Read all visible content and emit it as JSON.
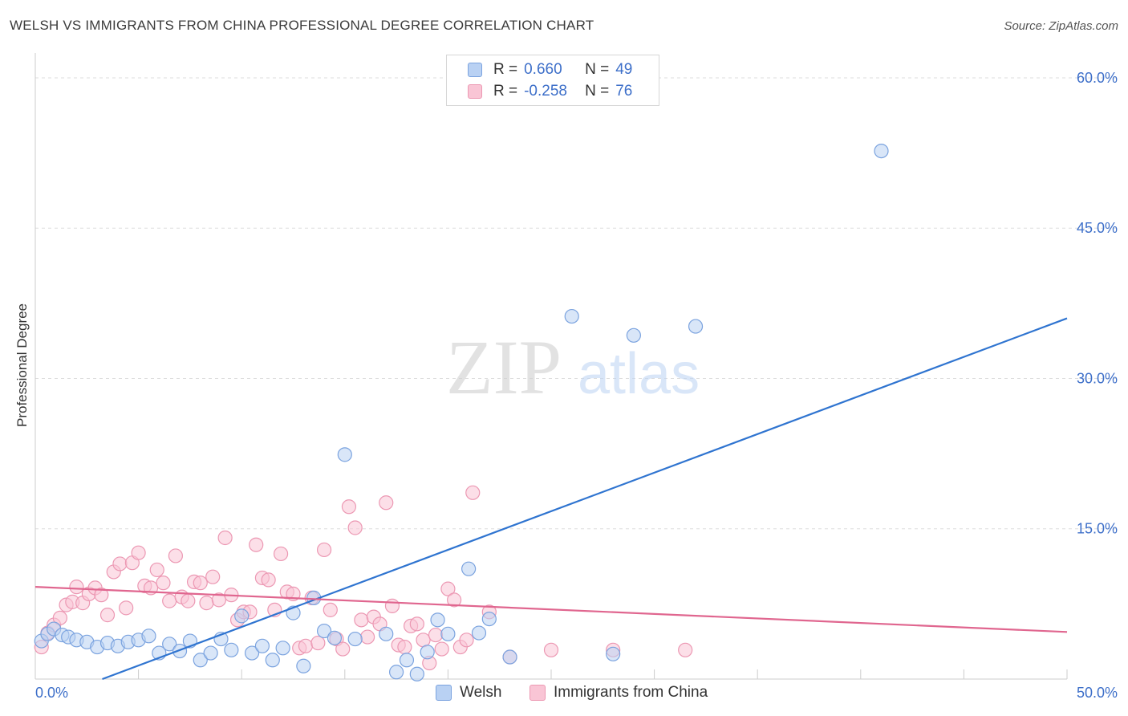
{
  "title": "WELSH VS IMMIGRANTS FROM CHINA PROFESSIONAL DEGREE CORRELATION CHART",
  "source": "Source: ZipAtlas.com",
  "watermark": {
    "zip": "ZIP",
    "atlas": "atlas"
  },
  "legend": {
    "rows": [
      {
        "r_label": "R =",
        "r_value": "0.660",
        "n_label": "N =",
        "n_value": "49"
      },
      {
        "r_label": "R =",
        "r_value": "-0.258",
        "n_label": "N =",
        "n_value": "76"
      }
    ]
  },
  "colors": {
    "welsh_fill": "#b9d1f3",
    "welsh_stroke": "#7ba3df",
    "welsh_line": "#2f74d0",
    "china_fill": "#f9c5d5",
    "china_stroke": "#ec98b3",
    "china_line": "#e0668f",
    "grid": "#dddddd",
    "axis_text": "#3d6fc9"
  },
  "chart_data": {
    "type": "scatter",
    "title": "WELSH VS IMMIGRANTS FROM CHINA PROFESSIONAL DEGREE CORRELATION CHART",
    "xlabel": "",
    "ylabel": "Professional Degree",
    "xlim": [
      0,
      50
    ],
    "ylim": [
      0,
      62
    ],
    "x_tick_labels": [
      "0.0%",
      "50.0%"
    ],
    "y_ticks": [
      15,
      30,
      45,
      60
    ],
    "y_tick_labels": [
      "15.0%",
      "30.0%",
      "45.0%",
      "60.0%"
    ],
    "series": [
      {
        "name": "Welsh",
        "R": 0.66,
        "N": 49,
        "trend": {
          "x": [
            0,
            50
          ],
          "y": [
            -2.5,
            36.0
          ]
        },
        "points": [
          [
            0.3,
            3.8
          ],
          [
            0.6,
            4.5
          ],
          [
            0.9,
            5.0
          ],
          [
            1.3,
            4.4
          ],
          [
            1.6,
            4.2
          ],
          [
            2.0,
            3.9
          ],
          [
            2.5,
            3.7
          ],
          [
            3.0,
            3.2
          ],
          [
            3.5,
            3.6
          ],
          [
            4.0,
            3.3
          ],
          [
            4.5,
            3.7
          ],
          [
            5.0,
            3.9
          ],
          [
            5.5,
            4.3
          ],
          [
            6.0,
            2.6
          ],
          [
            6.5,
            3.5
          ],
          [
            7.0,
            2.8
          ],
          [
            7.5,
            3.8
          ],
          [
            8.0,
            1.9
          ],
          [
            8.5,
            2.6
          ],
          [
            9.0,
            4.0
          ],
          [
            9.5,
            2.9
          ],
          [
            10.0,
            6.3
          ],
          [
            10.5,
            2.6
          ],
          [
            11.0,
            3.3
          ],
          [
            11.5,
            1.9
          ],
          [
            12.0,
            3.1
          ],
          [
            12.5,
            6.6
          ],
          [
            13.0,
            1.3
          ],
          [
            13.5,
            8.1
          ],
          [
            14.0,
            4.8
          ],
          [
            14.5,
            4.1
          ],
          [
            15.0,
            22.4
          ],
          [
            15.5,
            4.0
          ],
          [
            17.0,
            4.5
          ],
          [
            17.5,
            0.7
          ],
          [
            18.0,
            1.9
          ],
          [
            18.5,
            0.5
          ],
          [
            19.0,
            2.7
          ],
          [
            19.5,
            5.9
          ],
          [
            20.0,
            4.5
          ],
          [
            21.0,
            11.0
          ],
          [
            21.5,
            4.6
          ],
          [
            22.0,
            6.0
          ],
          [
            23.0,
            2.2
          ],
          [
            26.0,
            36.2
          ],
          [
            28.0,
            2.5
          ],
          [
            29.0,
            34.3
          ],
          [
            32.0,
            35.2
          ],
          [
            41.0,
            52.7
          ]
        ]
      },
      {
        "name": "Immigrants from China",
        "R": -0.258,
        "N": 76,
        "trend": {
          "x": [
            0,
            50
          ],
          "y": [
            9.2,
            4.7
          ]
        },
        "points": [
          [
            0.3,
            3.2
          ],
          [
            0.6,
            4.6
          ],
          [
            0.9,
            5.4
          ],
          [
            1.2,
            6.1
          ],
          [
            1.5,
            7.4
          ],
          [
            1.8,
            7.7
          ],
          [
            2.0,
            9.2
          ],
          [
            2.3,
            7.6
          ],
          [
            2.6,
            8.5
          ],
          [
            2.9,
            9.1
          ],
          [
            3.2,
            8.4
          ],
          [
            3.5,
            6.4
          ],
          [
            3.8,
            10.7
          ],
          [
            4.1,
            11.5
          ],
          [
            4.4,
            7.1
          ],
          [
            4.7,
            11.6
          ],
          [
            5.0,
            12.6
          ],
          [
            5.3,
            9.3
          ],
          [
            5.6,
            9.1
          ],
          [
            5.9,
            10.9
          ],
          [
            6.2,
            9.6
          ],
          [
            6.5,
            7.8
          ],
          [
            6.8,
            12.3
          ],
          [
            7.1,
            8.2
          ],
          [
            7.4,
            7.8
          ],
          [
            7.7,
            9.7
          ],
          [
            8.0,
            9.6
          ],
          [
            8.3,
            7.6
          ],
          [
            8.6,
            10.2
          ],
          [
            8.9,
            7.9
          ],
          [
            9.2,
            14.1
          ],
          [
            9.5,
            8.4
          ],
          [
            9.8,
            5.9
          ],
          [
            10.1,
            6.7
          ],
          [
            10.4,
            6.7
          ],
          [
            10.7,
            13.4
          ],
          [
            11.0,
            10.1
          ],
          [
            11.3,
            9.9
          ],
          [
            11.6,
            6.9
          ],
          [
            11.9,
            12.5
          ],
          [
            12.2,
            8.7
          ],
          [
            12.5,
            8.5
          ],
          [
            12.8,
            3.1
          ],
          [
            13.1,
            3.3
          ],
          [
            13.4,
            8.1
          ],
          [
            13.7,
            3.6
          ],
          [
            14.0,
            12.9
          ],
          [
            14.3,
            6.9
          ],
          [
            14.6,
            4.0
          ],
          [
            14.9,
            3.0
          ],
          [
            15.2,
            17.2
          ],
          [
            15.5,
            15.1
          ],
          [
            15.8,
            5.9
          ],
          [
            16.1,
            4.2
          ],
          [
            16.4,
            6.2
          ],
          [
            16.7,
            5.5
          ],
          [
            17.0,
            17.6
          ],
          [
            17.3,
            7.3
          ],
          [
            17.6,
            3.4
          ],
          [
            17.9,
            3.2
          ],
          [
            18.2,
            5.3
          ],
          [
            18.5,
            5.5
          ],
          [
            18.8,
            3.9
          ],
          [
            19.1,
            1.6
          ],
          [
            19.4,
            4.4
          ],
          [
            19.7,
            3.0
          ],
          [
            20.0,
            9.0
          ],
          [
            20.3,
            7.9
          ],
          [
            20.6,
            3.2
          ],
          [
            20.9,
            3.9
          ],
          [
            21.2,
            18.6
          ],
          [
            22.0,
            6.7
          ],
          [
            23.0,
            2.2
          ],
          [
            25.0,
            2.9
          ],
          [
            28.0,
            2.9
          ],
          [
            31.5,
            2.9
          ]
        ]
      }
    ]
  }
}
